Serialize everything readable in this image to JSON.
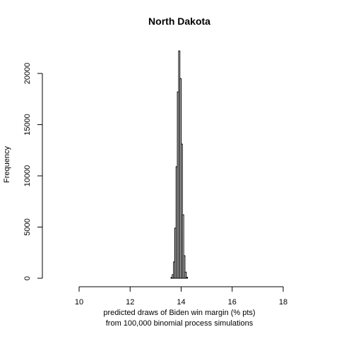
{
  "chart_data": {
    "type": "bar",
    "title": "North Dakota",
    "xlabel": "predicted draws of Biden win margin (% pts)",
    "xlabel_line2": "from 100,000 binomial process simulations",
    "ylabel": "Frequency",
    "xlim": [
      10,
      18
    ],
    "ylim": [
      0,
      22300
    ],
    "x_ticks": [
      10,
      12,
      14,
      16,
      18
    ],
    "y_ticks": [
      0,
      5000,
      10000,
      15000,
      20000
    ],
    "bin_width": 0.05,
    "bins": [
      {
        "x": 13.6,
        "count": 80
      },
      {
        "x": 13.65,
        "count": 350
      },
      {
        "x": 13.7,
        "count": 1600
      },
      {
        "x": 13.75,
        "count": 4900
      },
      {
        "x": 13.8,
        "count": 10900
      },
      {
        "x": 13.85,
        "count": 18200
      },
      {
        "x": 13.9,
        "count": 22200
      },
      {
        "x": 13.95,
        "count": 19500
      },
      {
        "x": 14.0,
        "count": 13100
      },
      {
        "x": 14.05,
        "count": 6200
      },
      {
        "x": 14.1,
        "count": 2200
      },
      {
        "x": 14.15,
        "count": 600
      },
      {
        "x": 14.2,
        "count": 100
      }
    ],
    "grid": false,
    "bar_fill": "#ffffff",
    "bar_stroke": "#000000"
  }
}
